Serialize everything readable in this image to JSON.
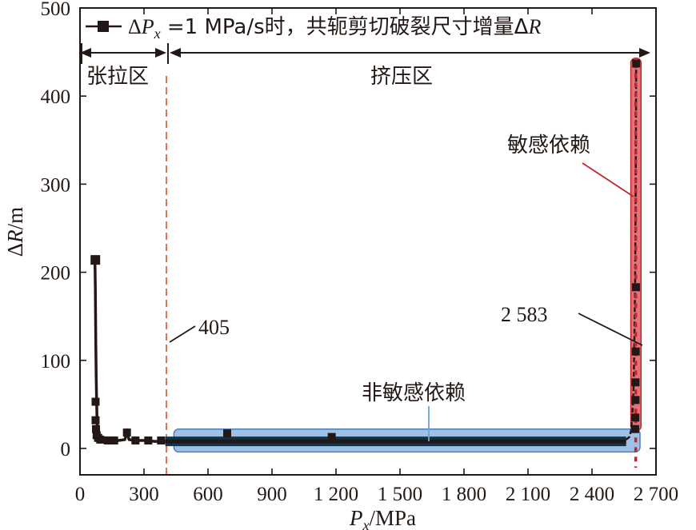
{
  "chart_data": {
    "type": "line",
    "xlabel": "Px/MPa",
    "xlabel_parts": {
      "var": "P",
      "sub": "x",
      "unit": "/MPa"
    },
    "ylabel": "ΔR/m",
    "ylabel_parts": {
      "delta": "Δ",
      "var": "R",
      "unit": "/m"
    },
    "xlim": [
      0,
      2700
    ],
    "ylim": [
      -30,
      500
    ],
    "xticks": [
      0,
      300,
      600,
      900,
      1200,
      1500,
      1800,
      2100,
      2400,
      2700
    ],
    "xtick_labels": [
      "0",
      "300",
      "600",
      "900",
      "1 200",
      "1 500",
      "1 800",
      "2 100",
      "2 400",
      "2 700"
    ],
    "yticks": [
      0,
      100,
      200,
      300,
      400,
      500
    ],
    "ytick_labels": [
      "0",
      "100",
      "200",
      "300",
      "400",
      "500"
    ],
    "legend": {
      "position": "top",
      "delta": "Δ",
      "var": "P",
      "sub": "x",
      "text_mid": " =1 MPa/s时，共轭剪切破裂尺寸增量Δ",
      "text_end": "R"
    },
    "regions": {
      "tension_label": "张拉区",
      "compression_label": "挤压区",
      "boundary_x": 405,
      "boundary_label": "405"
    },
    "annotations": {
      "sensitive": "敏感依赖",
      "insensitive": "非敏感依赖",
      "critical_label": "2 583",
      "critical_x": 2583
    },
    "colors": {
      "line": "#231815",
      "boundary": "#e5603a",
      "sensitive_fill": "#e05a5f",
      "sensitive_stroke": "#c0262d",
      "insensitive_fill": "#8fb6de",
      "insensitive_stroke": "#4a7fc0",
      "insensitive_core": "#0d3550",
      "sensitive_dots": "#c0262d"
    },
    "series": [
      {
        "x": [
          70,
          72,
          74,
          76,
          78,
          80,
          85,
          90,
          100,
          120,
          150,
          180,
          210,
          220,
          230,
          260,
          300,
          350,
          400
        ],
        "y": [
          214,
          180,
          120,
          80,
          53,
          30,
          15,
          10,
          9,
          8,
          8,
          9,
          10,
          18,
          10,
          9,
          9,
          8,
          8
        ]
      }
    ],
    "markers_left": [
      {
        "x": 72,
        "y": 214
      },
      {
        "x": 73,
        "y": 53
      },
      {
        "x": 73,
        "y": 32
      },
      {
        "x": 75,
        "y": 22
      },
      {
        "x": 78,
        "y": 15
      },
      {
        "x": 85,
        "y": 12
      },
      {
        "x": 95,
        "y": 10
      },
      {
        "x": 130,
        "y": 9
      },
      {
        "x": 160,
        "y": 9
      },
      {
        "x": 220,
        "y": 18
      },
      {
        "x": 260,
        "y": 9
      },
      {
        "x": 320,
        "y": 9
      },
      {
        "x": 380,
        "y": 9
      }
    ],
    "markers_mid": [
      {
        "x": 690,
        "y": 17
      },
      {
        "x": 1180,
        "y": 13
      }
    ],
    "steep_x": [
      2560,
      2575,
      2583,
      2590,
      2595,
      2598,
      2600,
      2602,
      2604,
      2606,
      2607
    ],
    "steep_y": [
      10,
      13,
      20,
      40,
      70,
      110,
      150,
      190,
      260,
      360,
      437
    ],
    "steep_markers": [
      {
        "x": 2607,
        "y": 437
      },
      {
        "x": 2606,
        "y": 183
      },
      {
        "x": 2605,
        "y": 110
      },
      {
        "x": 2604,
        "y": 75
      },
      {
        "x": 2604,
        "y": 55
      },
      {
        "x": 2603,
        "y": 35
      },
      {
        "x": 2602,
        "y": 22
      }
    ]
  }
}
